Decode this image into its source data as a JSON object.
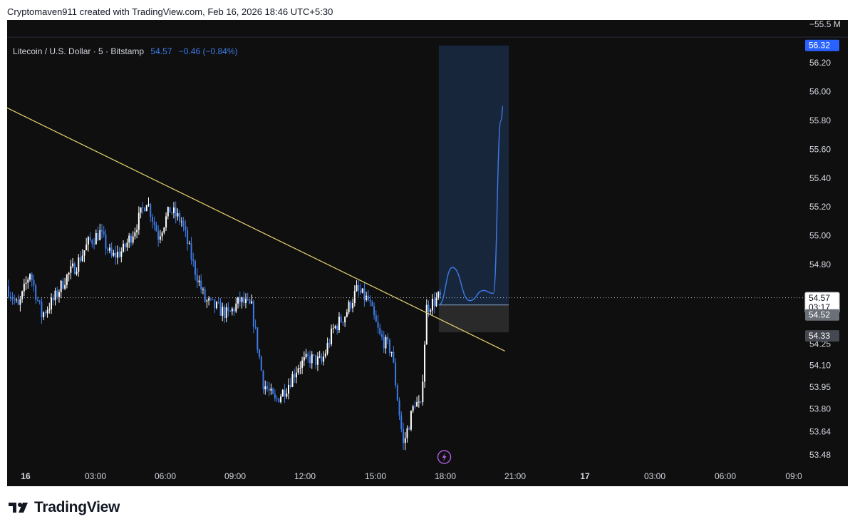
{
  "header": {
    "credit": "Cryptomaven911 created with TradingView.com, Feb 16, 2026 18:46 UTC+5:30"
  },
  "legend": {
    "symbol": "Litecoin / U.S. Dollar · 5 · Bitstamp",
    "price": "54.57",
    "change": "−0.46 (−0.84%)"
  },
  "price_axis": {
    "volume_label": "−55.5 M",
    "ticks": [
      "56.20",
      "56.00",
      "55.80",
      "55.60",
      "55.40",
      "55.20",
      "55.00",
      "54.80",
      "54.25",
      "54.10",
      "53.95",
      "53.80",
      "53.64",
      "53.48"
    ],
    "badges": {
      "target": "56.32",
      "last_price": "54.57",
      "countdown": "03:17",
      "entry": "54.52",
      "stop": "54.33"
    }
  },
  "time_axis": {
    "labels": [
      "16",
      "03:00",
      "06:00",
      "09:00",
      "12:00",
      "15:00",
      "18:00",
      "21:00",
      "17",
      "03:00",
      "06:00",
      "09:0"
    ]
  },
  "footer": {
    "brand": "TradingView"
  },
  "colors": {
    "background": "#0f0f0f",
    "up_candle": "#ffffff",
    "down_candle": "#3d7be8",
    "trendline": "#e3d26f",
    "projection": "#3d7be8",
    "target_zone": "#1a2a44",
    "stop_zone": "#2a2a2a",
    "alert_icon": "#b15ce0"
  },
  "chart_data": {
    "type": "candlestick",
    "symbol": "LTCUSD",
    "interval": "5",
    "exchange": "Bitstamp",
    "ylim": [
      53.4,
      56.55
    ],
    "x_labels": [
      "16",
      "03:00",
      "06:00",
      "09:00",
      "12:00",
      "15:00",
      "18:00",
      "21:00",
      "17",
      "03:00",
      "06:00",
      "09:0"
    ],
    "path_anchors": [
      {
        "t": "00:00",
        "price": 54.65
      },
      {
        "t": "00:30",
        "price": 54.5
      },
      {
        "t": "01:00",
        "price": 54.75
      },
      {
        "t": "01:30",
        "price": 54.45
      },
      {
        "t": "02:00",
        "price": 54.55
      },
      {
        "t": "02:30",
        "price": 54.7
      },
      {
        "t": "03:00",
        "price": 54.8
      },
      {
        "t": "03:30",
        "price": 54.95
      },
      {
        "t": "04:00",
        "price": 55.02
      },
      {
        "t": "04:30",
        "price": 54.85
      },
      {
        "t": "05:00",
        "price": 54.9
      },
      {
        "t": "05:30",
        "price": 55.05
      },
      {
        "t": "06:00",
        "price": 55.25
      },
      {
        "t": "06:30",
        "price": 55.0
      },
      {
        "t": "07:00",
        "price": 55.18
      },
      {
        "t": "07:30",
        "price": 55.1
      },
      {
        "t": "08:00",
        "price": 54.8
      },
      {
        "t": "08:30",
        "price": 54.55
      },
      {
        "t": "09:00",
        "price": 54.5
      },
      {
        "t": "09:30",
        "price": 54.45
      },
      {
        "t": "10:00",
        "price": 54.55
      },
      {
        "t": "10:30",
        "price": 54.5
      },
      {
        "t": "11:00",
        "price": 53.98
      },
      {
        "t": "11:30",
        "price": 53.85
      },
      {
        "t": "12:00",
        "price": 53.95
      },
      {
        "t": "12:30",
        "price": 54.1
      },
      {
        "t": "13:00",
        "price": 54.15
      },
      {
        "t": "13:30",
        "price": 54.12
      },
      {
        "t": "14:00",
        "price": 54.35
      },
      {
        "t": "14:30",
        "price": 54.45
      },
      {
        "t": "15:00",
        "price": 54.62
      },
      {
        "t": "15:30",
        "price": 54.55
      },
      {
        "t": "16:00",
        "price": 54.3
      },
      {
        "t": "16:30",
        "price": 54.2
      },
      {
        "t": "17:00",
        "price": 53.55
      },
      {
        "t": "17:30",
        "price": 53.85
      },
      {
        "t": "17:45",
        "price": 53.8
      },
      {
        "t": "18:00",
        "price": 54.5
      },
      {
        "t": "18:30",
        "price": 54.57
      }
    ],
    "trendline": {
      "from": {
        "t": "-00:10",
        "price": 55.9
      },
      "to": {
        "t": "21:20",
        "price": 54.2
      }
    },
    "position": {
      "type": "long",
      "entry": 54.52,
      "target": 56.32,
      "stop": 54.33,
      "from_t": "18:30",
      "to_t": "21:30"
    },
    "projection": [
      {
        "t": "18:30",
        "price": 54.52
      },
      {
        "t": "19:05",
        "price": 54.78
      },
      {
        "t": "19:50",
        "price": 54.55
      },
      {
        "t": "20:25",
        "price": 54.62
      },
      {
        "t": "20:50",
        "price": 54.6
      },
      {
        "t": "21:10",
        "price": 55.8
      },
      {
        "t": "21:15",
        "price": 55.9
      }
    ],
    "last_price": 54.57,
    "countdown": "03:17"
  }
}
